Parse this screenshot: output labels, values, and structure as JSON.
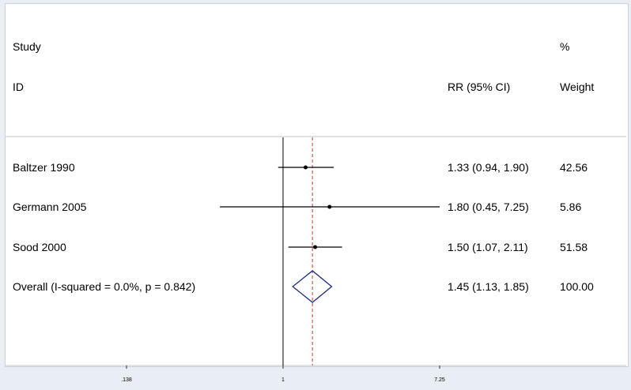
{
  "chart_data": {
    "type": "forest",
    "header": {
      "study_line1": "Study",
      "study_line2": "ID",
      "effect_line2": "RR (95% CI)",
      "weight_line1": "%",
      "weight_line2": "Weight"
    },
    "scale": "log",
    "xlim": [
      0.138,
      7.25
    ],
    "x_ticks": [
      {
        "value": 0.138,
        "label": ".138"
      },
      {
        "value": 1,
        "label": "1"
      },
      {
        "value": 7.25,
        "label": "7.25"
      }
    ],
    "null_line": 1,
    "overall_line": 1.45,
    "studies": [
      {
        "id": "Baltzer 1990",
        "rr": 1.33,
        "lo": 0.94,
        "hi": 1.9,
        "ci_text": "1.33 (0.94, 1.90)",
        "weight": "42.56"
      },
      {
        "id": "Germann 2005",
        "rr": 1.8,
        "lo": 0.45,
        "hi": 7.25,
        "ci_text": "1.80 (0.45, 7.25)",
        "weight": "5.86"
      },
      {
        "id": "Sood 2000",
        "rr": 1.5,
        "lo": 1.07,
        "hi": 2.11,
        "ci_text": "1.50 (1.07, 2.11)",
        "weight": "51.58"
      }
    ],
    "overall": {
      "id": "Overall  (I-squared = 0.0%, p = 0.842)",
      "rr": 1.45,
      "lo": 1.13,
      "hi": 1.85,
      "ci_text": "1.45 (1.13, 1.85)",
      "weight": "100.00"
    },
    "colors": {
      "diamond": "#1a2a7a",
      "overall_line": "#c0392b",
      "bg": "#e8eef4"
    }
  }
}
